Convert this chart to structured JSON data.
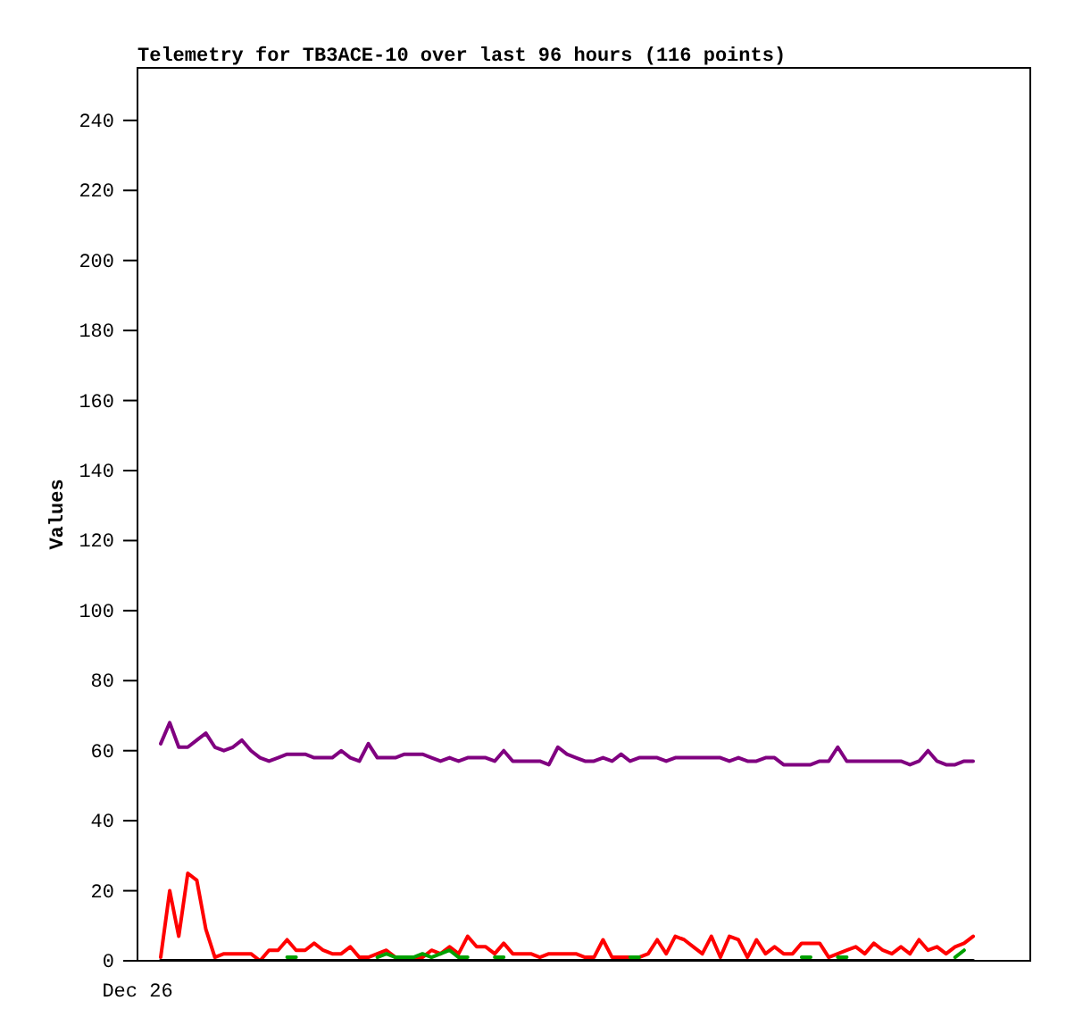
{
  "chart_data": {
    "type": "line",
    "title": "Telemetry for TB3ACE-10 over last 96 hours (116 points)",
    "ylabel": "Values",
    "annotations": [
      "Dec 26"
    ],
    "ylim": [
      0,
      255
    ],
    "yticks": [
      0,
      20,
      40,
      60,
      80,
      100,
      120,
      140,
      160,
      180,
      200,
      220,
      240
    ],
    "grid": false,
    "marker": "none",
    "line_style": "solid",
    "categories": [
      null,
      null,
      null,
      null,
      null,
      null,
      null,
      null,
      null,
      null,
      null,
      null,
      null,
      null,
      null,
      null,
      null,
      null,
      null,
      null,
      null,
      null,
      null,
      null,
      null,
      null,
      null,
      null,
      null,
      null,
      null,
      null,
      null,
      null,
      null,
      null,
      null,
      null,
      null,
      null,
      null,
      null,
      null,
      null,
      null,
      null,
      null,
      null,
      null,
      null,
      null,
      null,
      null,
      null,
      null,
      null,
      null,
      null,
      null,
      null,
      null,
      null,
      null,
      null,
      null,
      null,
      null,
      null,
      null,
      null,
      null,
      null,
      null,
      null,
      null,
      null,
      null,
      null,
      null,
      null,
      null,
      null,
      null,
      null,
      null,
      null,
      null,
      null,
      null,
      null,
      null
    ],
    "series": [
      {
        "color": "#800080",
        "values": [
          62,
          68,
          61,
          61,
          63,
          65,
          61,
          60,
          61,
          63,
          60,
          58,
          57,
          58,
          59,
          59,
          59,
          58,
          58,
          58,
          60,
          58,
          57,
          62,
          58,
          58,
          58,
          59,
          59,
          59,
          58,
          57,
          58,
          57,
          58,
          58,
          58,
          57,
          60,
          57,
          57,
          57,
          57,
          56,
          61,
          59,
          58,
          57,
          57,
          58,
          57,
          59,
          57,
          58,
          58,
          58,
          57,
          58,
          58,
          58,
          58,
          58,
          58,
          57,
          58,
          57,
          57,
          58,
          58,
          56,
          56,
          56,
          56,
          57,
          57,
          61,
          57,
          57,
          57,
          57,
          57,
          57,
          57,
          56,
          57,
          60,
          57,
          56,
          56,
          57,
          57
        ]
      },
      {
        "color": "#ff0000",
        "values": [
          1,
          20,
          7,
          25,
          23,
          9,
          1,
          2,
          2,
          2,
          2,
          0,
          3,
          3,
          6,
          3,
          3,
          5,
          3,
          2,
          2,
          4,
          1,
          1,
          2,
          3,
          1,
          1,
          1,
          1,
          3,
          2,
          4,
          2,
          7,
          4,
          4,
          2,
          5,
          2,
          2,
          2,
          1,
          2,
          2,
          2,
          2,
          1,
          1,
          6,
          1,
          1,
          1,
          1,
          2,
          6,
          2,
          7,
          6,
          4,
          2,
          7,
          1,
          7,
          6,
          1,
          6,
          2,
          4,
          2,
          2,
          5,
          5,
          5,
          1,
          2,
          3,
          4,
          2,
          5,
          3,
          2,
          4,
          2,
          6,
          3,
          4,
          2,
          4,
          5,
          7
        ]
      },
      {
        "color": "#00a000",
        "values": [
          null,
          null,
          null,
          null,
          null,
          null,
          null,
          null,
          null,
          null,
          null,
          null,
          null,
          null,
          1,
          1,
          null,
          null,
          null,
          null,
          null,
          null,
          null,
          null,
          1,
          2,
          1,
          1,
          1,
          2,
          1,
          2,
          3,
          1,
          1,
          null,
          null,
          1,
          1,
          null,
          null,
          null,
          null,
          null,
          null,
          null,
          null,
          null,
          null,
          null,
          null,
          null,
          1,
          1,
          null,
          null,
          null,
          null,
          null,
          null,
          null,
          null,
          null,
          null,
          null,
          null,
          null,
          null,
          null,
          null,
          null,
          1,
          1,
          null,
          null,
          1,
          1,
          null,
          null,
          null,
          null,
          null,
          null,
          null,
          null,
          null,
          null,
          null,
          1,
          3,
          null
        ]
      },
      {
        "color": "#000000",
        "values": [
          0,
          0,
          0,
          0,
          0,
          0,
          0,
          0,
          0,
          0,
          0,
          0,
          0,
          0,
          0,
          0,
          0,
          0,
          0,
          0,
          0,
          0,
          0,
          0,
          0,
          0,
          0,
          0,
          0,
          0,
          0,
          0,
          0,
          0,
          0,
          0,
          0,
          0,
          0,
          0,
          0,
          0,
          0,
          0,
          0,
          0,
          0,
          0,
          0,
          0,
          0,
          0,
          0,
          0,
          0,
          0,
          0,
          0,
          0,
          0,
          0,
          0,
          0,
          0,
          0,
          0,
          0,
          0,
          0,
          0,
          0,
          0,
          0,
          0,
          0,
          0,
          0,
          0,
          0,
          0,
          0,
          0,
          0,
          0,
          0,
          0,
          0,
          0,
          0,
          0,
          0
        ]
      }
    ]
  }
}
